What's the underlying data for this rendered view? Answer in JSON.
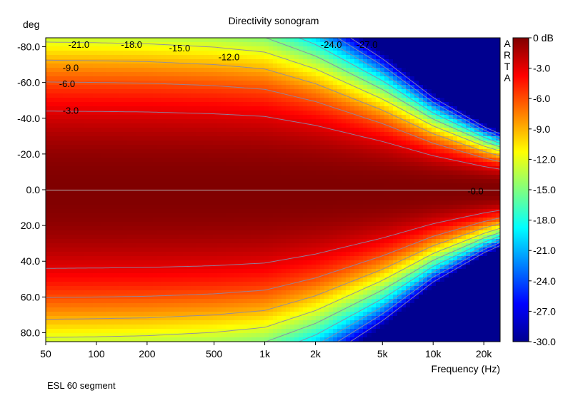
{
  "chart_data": {
    "type": "heatmap",
    "title": "Directivity sonogram",
    "xlabel": "Frequency (Hz)",
    "ylabel": "deg",
    "x_scale": "log",
    "xlim": [
      50,
      25000
    ],
    "ylim": [
      -85,
      85
    ],
    "x_ticks": [
      {
        "value": 50,
        "label": "50"
      },
      {
        "value": 100,
        "label": "100"
      },
      {
        "value": 200,
        "label": "200"
      },
      {
        "value": 500,
        "label": "500"
      },
      {
        "value": 1000,
        "label": "1k"
      },
      {
        "value": 2000,
        "label": "2k"
      },
      {
        "value": 5000,
        "label": "5k"
      },
      {
        "value": 10000,
        "label": "10k"
      },
      {
        "value": 20000,
        "label": "20k"
      }
    ],
    "y_ticks": [
      {
        "value": -80,
        "label": "-80.0"
      },
      {
        "value": -60,
        "label": "-60.0"
      },
      {
        "value": -40,
        "label": "-40.0"
      },
      {
        "value": -20,
        "label": "-20.0"
      },
      {
        "value": 0,
        "label": "0.0"
      },
      {
        "value": 20,
        "label": "20.0"
      },
      {
        "value": 40,
        "label": "40.0"
      },
      {
        "value": 60,
        "label": "60.0"
      },
      {
        "value": 80,
        "label": "80.0"
      }
    ],
    "colorbar": {
      "range": [
        -30,
        0
      ],
      "ticks": [
        {
          "value": 0,
          "label": "0 dB"
        },
        {
          "value": -3,
          "label": "-3.0"
        },
        {
          "value": -6,
          "label": "-6.0"
        },
        {
          "value": -9,
          "label": "-9.0"
        },
        {
          "value": -12,
          "label": "-12.0"
        },
        {
          "value": -15,
          "label": "-15.0"
        },
        {
          "value": -18,
          "label": "-18.0"
        },
        {
          "value": -21,
          "label": "-21.0"
        },
        {
          "value": -24,
          "label": "-24.0"
        },
        {
          "value": -27,
          "label": "-27.0"
        },
        {
          "value": -30,
          "label": "-30.0"
        }
      ],
      "colormap": "jet"
    },
    "beam_halfwidth_at_minus3dB": {
      "freq": [
        50,
        100,
        200,
        500,
        1000,
        2000,
        5000,
        10000,
        20000,
        25000
      ],
      "angle_deg": [
        44,
        43.8,
        43.5,
        42.5,
        41,
        36,
        27,
        19,
        13,
        11.5
      ]
    },
    "contours_db": [
      -3,
      -6,
      -9,
      -12,
      -15,
      -18,
      -21,
      -24,
      -27
    ],
    "contour_labels": [
      {
        "text": "-21.0",
        "freq": 68,
        "angle": -81.5
      },
      {
        "text": "-18.0",
        "freq": 140,
        "angle": -81.5
      },
      {
        "text": "-15.0",
        "freq": 270,
        "angle": -79.5
      },
      {
        "text": "-12.0",
        "freq": 530,
        "angle": -74.5
      },
      {
        "text": "-9.0",
        "freq": 63,
        "angle": -68.5
      },
      {
        "text": "-6.0",
        "freq": 60,
        "angle": -59.5
      },
      {
        "text": "-3.0",
        "freq": 63,
        "angle": -44.5
      },
      {
        "text": "-24.0",
        "freq": 2150,
        "angle": -81.5
      },
      {
        "text": "-27.0",
        "freq": 3500,
        "angle": -81.5
      },
      {
        "text": "-0.0",
        "freq": 16000,
        "angle": 0.5
      }
    ],
    "watermark": "ARTA",
    "footnote": "ESL 60 segment"
  }
}
